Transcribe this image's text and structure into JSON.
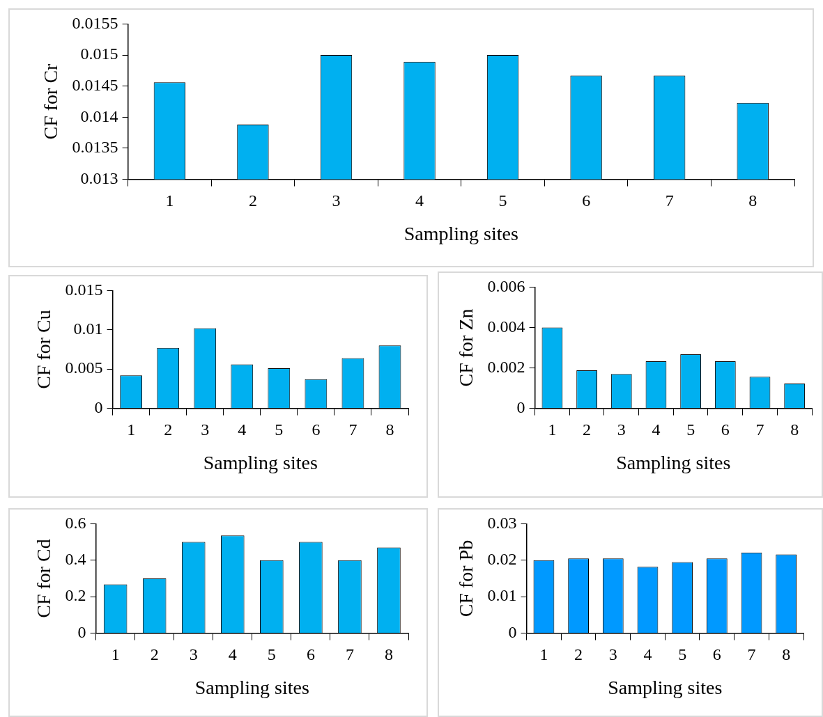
{
  "chart_data": [
    {
      "type": "bar",
      "categories": [
        "1",
        "2",
        "3",
        "4",
        "5",
        "6",
        "7",
        "8"
      ],
      "values": [
        0.01456,
        0.01388,
        0.015,
        0.01489,
        0.015,
        0.01467,
        0.01467,
        0.01423
      ],
      "color": "#00b0f0",
      "ylim": [
        0.013,
        0.0155
      ],
      "yticks": [
        0.013,
        0.0135,
        0.014,
        0.0145,
        0.015,
        0.0155
      ],
      "xlabel": "Sampling sites",
      "ylabel": "CF for Cr"
    },
    {
      "type": "bar",
      "categories": [
        "1",
        "2",
        "3",
        "4",
        "5",
        "6",
        "7",
        "8"
      ],
      "values": [
        0.0042,
        0.0077,
        0.0102,
        0.0056,
        0.0051,
        0.0037,
        0.0064,
        0.008
      ],
      "color": "#00b0f0",
      "ylim": [
        0,
        0.015
      ],
      "yticks": [
        0,
        0.005,
        0.01,
        0.015
      ],
      "xlabel": "Sampling sites",
      "ylabel": "CF for Cu"
    },
    {
      "type": "bar",
      "categories": [
        "1",
        "2",
        "3",
        "4",
        "5",
        "6",
        "7",
        "8"
      ],
      "values": [
        0.004,
        0.00188,
        0.0017,
        0.00233,
        0.00267,
        0.00233,
        0.00156,
        0.00123
      ],
      "color": "#00b0f0",
      "ylim": [
        0,
        0.006
      ],
      "yticks": [
        0,
        0.002,
        0.004,
        0.006
      ],
      "xlabel": "Sampling sites",
      "ylabel": "CF for Zn"
    },
    {
      "type": "bar",
      "categories": [
        "1",
        "2",
        "3",
        "4",
        "5",
        "6",
        "7",
        "8"
      ],
      "values": [
        0.268,
        0.3,
        0.5,
        0.536,
        0.4,
        0.5,
        0.4,
        0.47
      ],
      "color": "#00b0f0",
      "ylim": [
        0,
        0.6
      ],
      "yticks": [
        0,
        0.2,
        0.4,
        0.6
      ],
      "xlabel": "Sampling sites",
      "ylabel": "CF for Cd"
    },
    {
      "type": "bar",
      "categories": [
        "1",
        "2",
        "3",
        "4",
        "5",
        "6",
        "7",
        "8"
      ],
      "values": [
        0.02,
        0.0205,
        0.0205,
        0.0182,
        0.0195,
        0.0205,
        0.0221,
        0.0216
      ],
      "color": "#0099ff",
      "ylim": [
        0,
        0.03
      ],
      "yticks": [
        0,
        0.01,
        0.02,
        0.03
      ],
      "xlabel": "Sampling sites",
      "ylabel": "CF for Pb"
    }
  ]
}
